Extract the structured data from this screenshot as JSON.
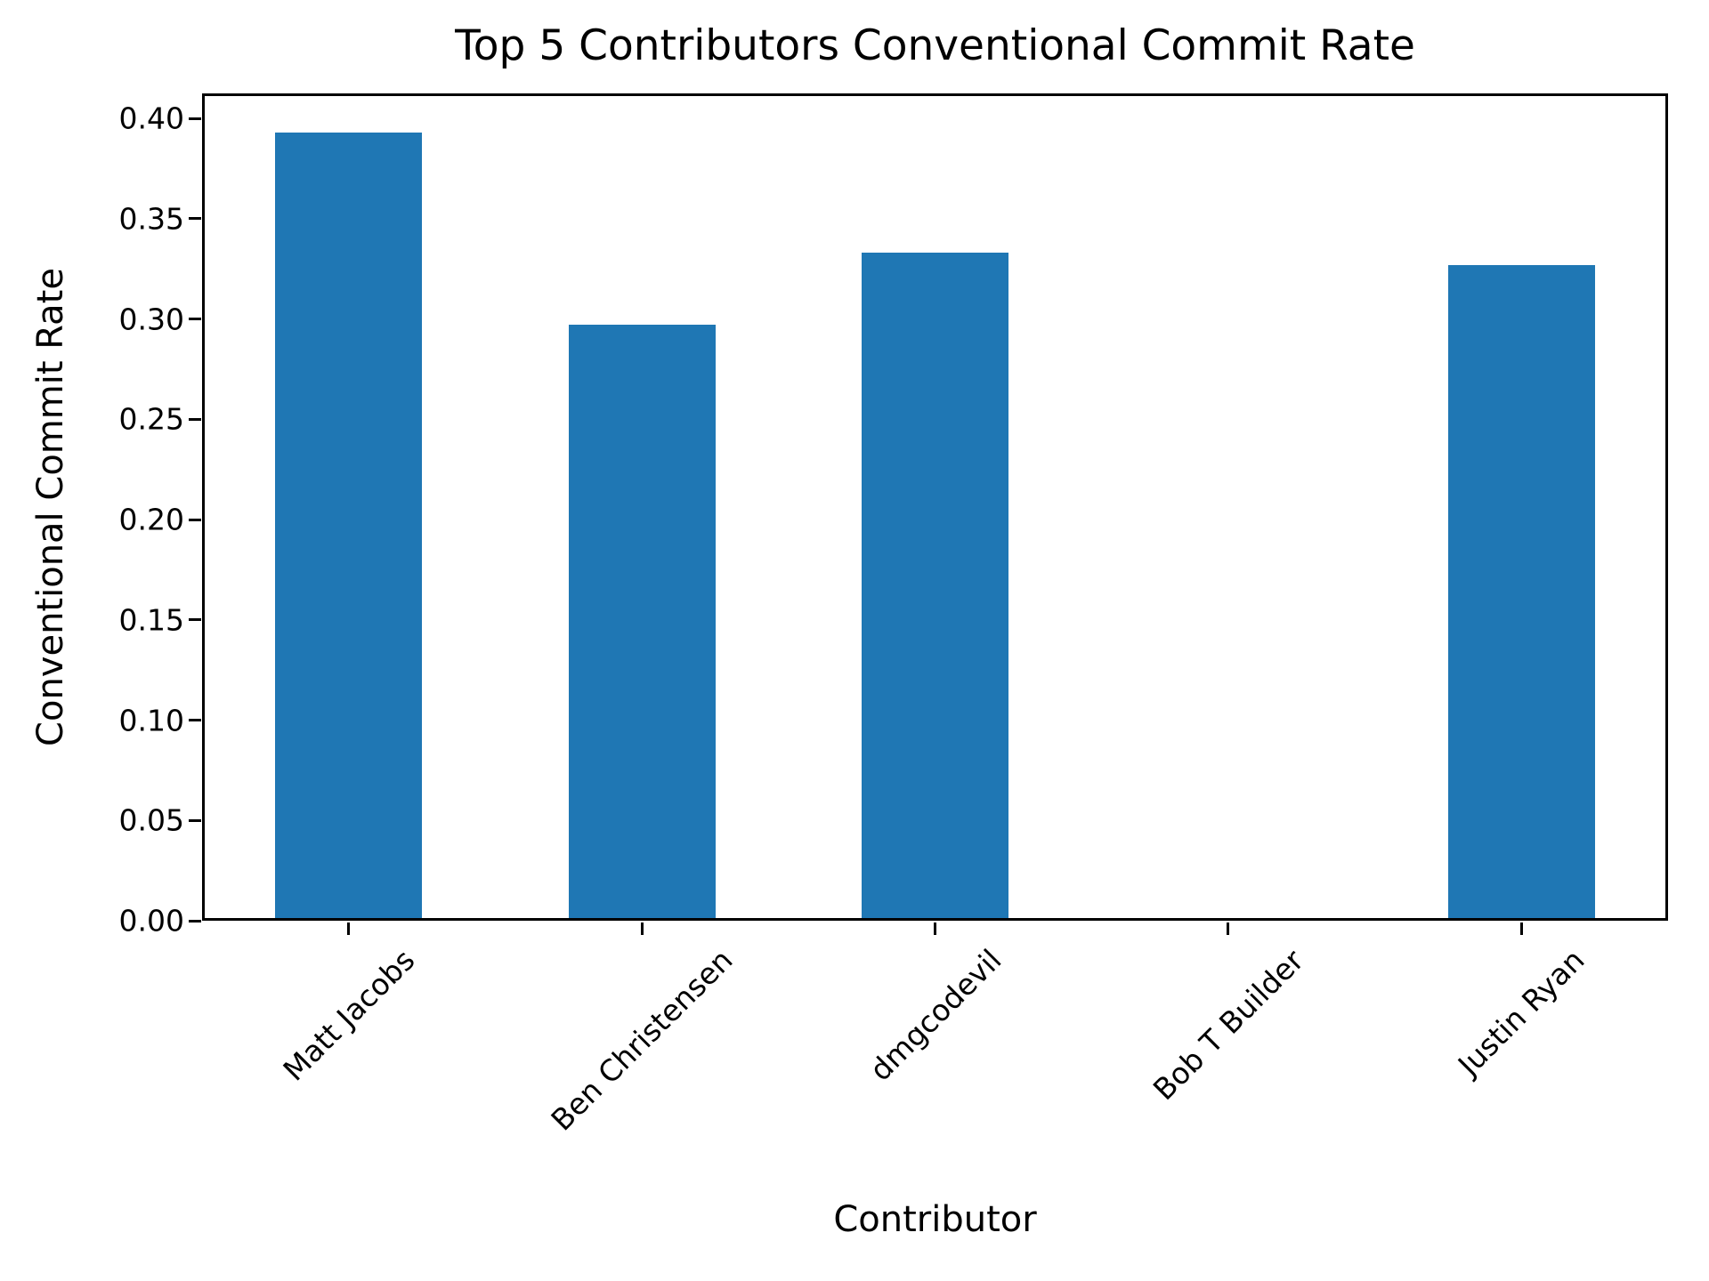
{
  "chart_data": {
    "type": "bar",
    "title": "Top 5 Contributors Conventional Commit Rate",
    "xlabel": "Contributor",
    "ylabel": "Conventional Commit Rate",
    "categories": [
      "Matt Jacobs",
      "Ben Christensen",
      "dmgcodevil",
      "Bob T Builder",
      "Justin Ryan"
    ],
    "values": [
      0.393,
      0.297,
      0.333,
      0.0,
      0.327
    ],
    "ylim": [
      0,
      0.4125
    ],
    "yticks": [
      0.0,
      0.05,
      0.1,
      0.15,
      0.2,
      0.25,
      0.3,
      0.35,
      0.4
    ],
    "ytick_labels": [
      "0.00",
      "0.05",
      "0.10",
      "0.15",
      "0.20",
      "0.25",
      "0.30",
      "0.35",
      "0.40"
    ],
    "bar_color": "#1f77b4",
    "text_color": "#000000",
    "background_color": "#ffffff",
    "grid": false,
    "legend": null,
    "x_tick_label_rotation_deg": 45
  }
}
